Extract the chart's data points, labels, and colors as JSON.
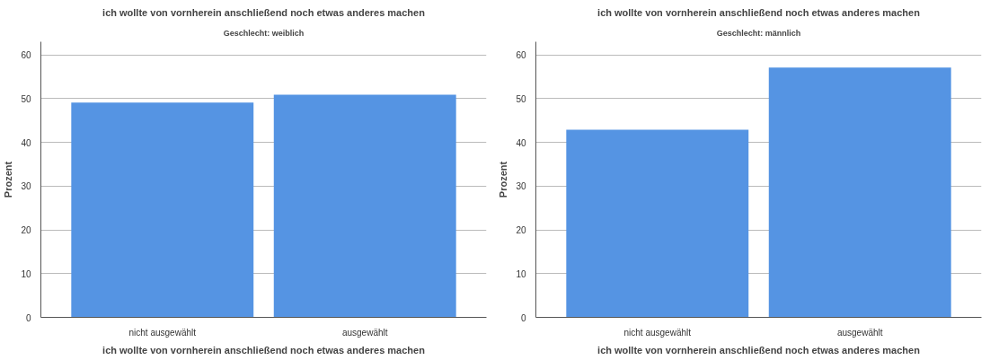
{
  "chart_data": [
    {
      "type": "bar",
      "title": "ich wollte von vornherein anschließend noch etwas anderes machen",
      "subtitle": "Geschlecht: weiblich",
      "xlabel": "ich wollte von vornherein anschließend noch etwas anderes machen",
      "ylabel": "Prozent",
      "categories": [
        "nicht ausgewählt",
        "ausgewählt"
      ],
      "values": [
        49.1,
        50.9
      ],
      "color": "#5594e3",
      "ylim": [
        0,
        63
      ],
      "yticks": [
        0,
        10,
        20,
        30,
        40,
        50,
        60
      ],
      "grid": "y"
    },
    {
      "type": "bar",
      "title": "ich wollte von vornherein anschließend noch etwas anderes machen",
      "subtitle": "Geschlecht: männlich",
      "xlabel": "ich wollte von vornherein anschließend noch etwas anderes machen",
      "ylabel": "Prozent",
      "categories": [
        "nicht ausgewählt",
        "ausgewählt"
      ],
      "values": [
        42.9,
        57.1
      ],
      "color": "#5594e3",
      "ylim": [
        0,
        63
      ],
      "yticks": [
        0,
        10,
        20,
        30,
        40,
        50,
        60
      ],
      "grid": "y"
    }
  ]
}
